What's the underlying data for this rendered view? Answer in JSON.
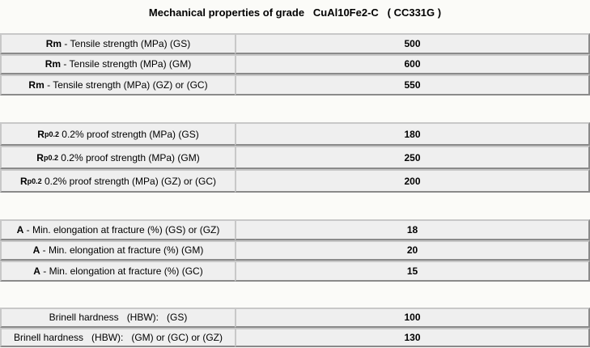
{
  "title": "Mechanical properties of grade   CuAl10Fe2-C   ( CC331G )",
  "groups": [
    {
      "rows": [
        {
          "symbol": "Rm",
          "text": " - Tensile strength (MPa) (GS)",
          "value": 500
        },
        {
          "symbol": "Rm",
          "text": " - Tensile strength (MPa) (GM)",
          "value": 600
        },
        {
          "symbol": "Rm",
          "text": " - Tensile strength (MPa) (GZ) or (GC)",
          "value": 550
        }
      ]
    },
    {
      "rows": [
        {
          "symbol": "R",
          "subscript": "p0.2",
          "text": " 0.2% proof strength (MPa) (GS)",
          "value": 180
        },
        {
          "symbol": "R",
          "subscript": "p0.2",
          "text": " 0.2% proof strength (MPa) (GM)",
          "value": 250
        },
        {
          "symbol": "R",
          "subscript": "p0.2",
          "text": " 0.2% proof strength (MPa) (GZ) or (GC)",
          "value": 200
        }
      ]
    },
    {
      "rows": [
        {
          "symbol": "A",
          "text": " - Min. elongation at fracture (%) (GS) or (GZ)",
          "value": 18
        },
        {
          "symbol": "A",
          "text": " - Min. elongation at fracture (%) (GM)",
          "value": 20
        },
        {
          "symbol": "A",
          "text": " - Min. elongation at fracture (%) (GC)",
          "value": 15
        }
      ]
    },
    {
      "rows": [
        {
          "text": "Brinell hardness   (HBW):   (GS)",
          "value": 100
        },
        {
          "text": "Brinell hardness   (HBW):   (GM) or (GC) or (GZ)",
          "value": 130
        }
      ]
    }
  ]
}
